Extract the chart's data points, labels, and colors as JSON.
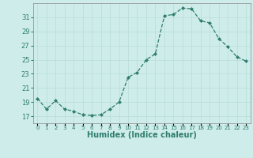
{
  "x": [
    0,
    1,
    2,
    3,
    4,
    5,
    6,
    7,
    8,
    9,
    10,
    11,
    12,
    13,
    14,
    15,
    16,
    17,
    18,
    19,
    20,
    21,
    22,
    23
  ],
  "y": [
    19.5,
    18.0,
    19.2,
    18.0,
    17.7,
    17.2,
    17.1,
    17.2,
    18.0,
    19.0,
    22.5,
    23.2,
    25.0,
    25.8,
    31.2,
    31.4,
    32.3,
    32.2,
    30.5,
    30.2,
    28.0,
    26.8,
    25.4,
    24.8
  ],
  "line_color": "#2e7d6e",
  "marker": "D",
  "marker_size": 2.0,
  "xlabel": "Humidex (Indice chaleur)",
  "ylim": [
    16,
    33
  ],
  "xlim": [
    -0.5,
    23.5
  ],
  "yticks": [
    17,
    19,
    21,
    23,
    25,
    27,
    29,
    31
  ],
  "xtick_labels": [
    "0",
    "1",
    "2",
    "3",
    "4",
    "5",
    "6",
    "7",
    "8",
    "9",
    "10",
    "11",
    "12",
    "13",
    "14",
    "15",
    "16",
    "17",
    "18",
    "19",
    "20",
    "21",
    "22",
    "23"
  ],
  "bg_color": "#ceecea",
  "grid_color": "#b8ddd9",
  "spine_color": "#888888",
  "tick_color": "#2e7d6e",
  "xlabel_fontsize": 7,
  "ytick_fontsize": 6,
  "xtick_fontsize": 5
}
